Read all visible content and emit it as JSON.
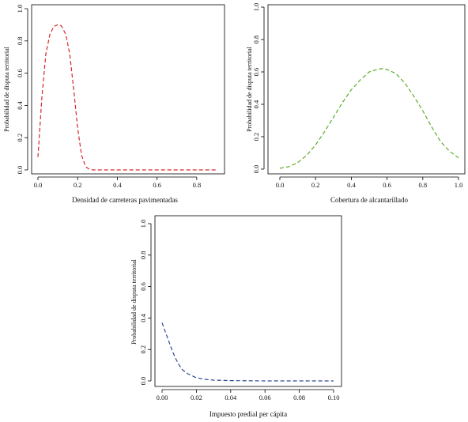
{
  "figure": {
    "panels": [
      {
        "id": "p1",
        "xlabel": "Densidad de carreteras pavimentadas",
        "ylabel": "Probabilidad de disputa territorial"
      },
      {
        "id": "p2",
        "xlabel": "Cobertura de alcantarillado",
        "ylabel": "Probabilidad de disputa territorial"
      },
      {
        "id": "p3",
        "xlabel": "Impuesto predial per cápita",
        "ylabel": "Probabilidad de disputa territorial"
      }
    ]
  },
  "chart_data": [
    {
      "type": "line",
      "title": "",
      "xlabel": "Densidad de carreteras pavimentadas",
      "ylabel": "Probabilidad de disputa territorial",
      "xlim": [
        0,
        0.9
      ],
      "ylim": [
        0,
        1.0
      ],
      "xticks": [
        "0.0",
        "0.2",
        "0.4",
        "0.6",
        "0.8"
      ],
      "yticks": [
        "0.0",
        "0.2",
        "0.4",
        "0.6",
        "0.8",
        "1.0"
      ],
      "grid": false,
      "series": [
        {
          "color": "#d62728",
          "dash": "dashed",
          "x": [
            0.0,
            0.02,
            0.04,
            0.06,
            0.08,
            0.1,
            0.11,
            0.12,
            0.14,
            0.16,
            0.18,
            0.2,
            0.22,
            0.24,
            0.26,
            0.28,
            0.3,
            0.4,
            0.5,
            0.6,
            0.7,
            0.8,
            0.9
          ],
          "y": [
            0.08,
            0.45,
            0.72,
            0.84,
            0.89,
            0.9,
            0.9,
            0.89,
            0.84,
            0.72,
            0.5,
            0.26,
            0.09,
            0.02,
            0.003,
            0.0,
            0.0,
            0.0,
            0.0,
            0.0,
            0.0,
            0.0,
            0.0
          ]
        }
      ]
    },
    {
      "type": "line",
      "title": "",
      "xlabel": "Cobertura de alcantarillado",
      "ylabel": "Probabilidad de disputa territorial",
      "xlim": [
        0,
        1.0
      ],
      "ylim": [
        0,
        1.0
      ],
      "xticks": [
        "0.0",
        "0.2",
        "0.4",
        "0.6",
        "0.8",
        "1.0"
      ],
      "yticks": [
        "0.0",
        "0.2",
        "0.4",
        "0.6",
        "0.8",
        "1.0"
      ],
      "grid": false,
      "series": [
        {
          "color": "#5aae2a",
          "dash": "dashed",
          "x": [
            0.0,
            0.05,
            0.1,
            0.15,
            0.2,
            0.25,
            0.3,
            0.35,
            0.4,
            0.45,
            0.5,
            0.55,
            0.57,
            0.6,
            0.65,
            0.7,
            0.75,
            0.8,
            0.85,
            0.9,
            0.95,
            1.0
          ],
          "y": [
            0.005,
            0.015,
            0.04,
            0.085,
            0.15,
            0.23,
            0.32,
            0.41,
            0.49,
            0.55,
            0.6,
            0.617,
            0.62,
            0.615,
            0.59,
            0.53,
            0.45,
            0.36,
            0.26,
            0.17,
            0.11,
            0.07
          ]
        }
      ]
    },
    {
      "type": "line",
      "title": "",
      "xlabel": "Impuesto predial per cápita",
      "ylabel": "Probabilidad de disputa territorial",
      "xlim": [
        0,
        0.1
      ],
      "ylim": [
        0,
        1.0
      ],
      "xticks": [
        "0.00",
        "0.02",
        "0.04",
        "0.06",
        "0.08",
        "0.10"
      ],
      "yticks": [
        "0.0",
        "0.2",
        "0.4",
        "0.6",
        "0.8",
        "1.0"
      ],
      "grid": false,
      "series": [
        {
          "color": "#2f4a8f",
          "dash": "dashed",
          "x": [
            0.0,
            0.002,
            0.004,
            0.006,
            0.008,
            0.01,
            0.012,
            0.015,
            0.02,
            0.025,
            0.03,
            0.04,
            0.05,
            0.06,
            0.07,
            0.08,
            0.09,
            0.1
          ],
          "y": [
            0.37,
            0.31,
            0.25,
            0.19,
            0.14,
            0.1,
            0.07,
            0.045,
            0.02,
            0.01,
            0.005,
            0.002,
            0.001,
            0.0,
            0.0,
            0.0,
            0.0,
            0.0
          ]
        }
      ]
    }
  ]
}
